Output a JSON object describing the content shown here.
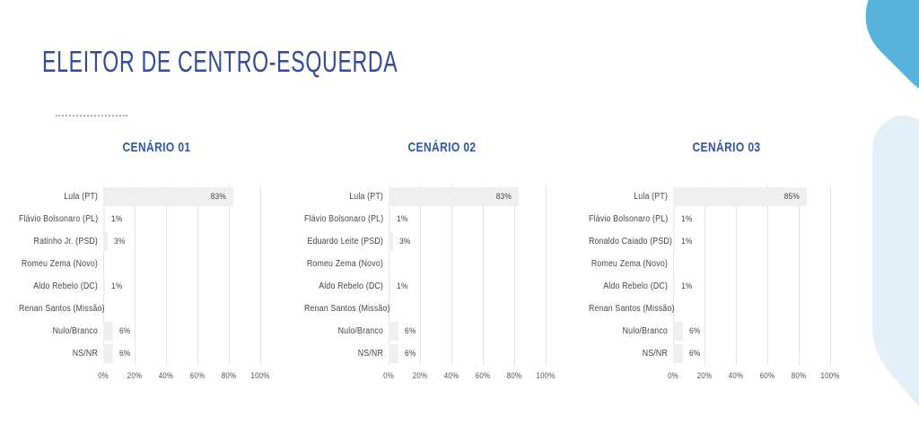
{
  "title": "ELEITOR DE CENTRO-ESQUERDA",
  "colors": {
    "title_navy": "#32499c",
    "scenario_blue": "#2d55a8",
    "bar_fill": "#efefef",
    "grid_line": "#e4e4e7",
    "label_text": "#3e434d",
    "blob_blue": "#57b3d9",
    "blob_light": "#e4f0f8"
  },
  "chart_data": [
    {
      "type": "bar",
      "orientation": "horizontal",
      "title": "CENÁRIO 01",
      "categories": [
        "Lula (PT)",
        "Flávio Bolsonaro (PL)",
        "Ratinho Jr. (PSD)",
        "Romeu Zema (Novo)",
        "Aldo Rebelo (DC)",
        "Renan Santos (Missão)",
        "Nulo/Branco",
        "NS/NR"
      ],
      "values": [
        83,
        1,
        3,
        0,
        1,
        0,
        6,
        6
      ],
      "value_labels": [
        "83%",
        "1%",
        "3%",
        "",
        "1%",
        "",
        "6%",
        "6%"
      ],
      "xlim": [
        0,
        100
      ],
      "x_ticks": [
        "0%",
        "20%",
        "40%",
        "60%",
        "80%",
        "100%"
      ],
      "grid": true,
      "legend": "none"
    },
    {
      "type": "bar",
      "orientation": "horizontal",
      "title": "CENÁRIO 02",
      "categories": [
        "Lula (PT)",
        "Flávio Bolsonaro (PL)",
        "Eduardo Leite (PSD)",
        "Romeu Zema (Novo)",
        "Aldo Rebelo (DC)",
        "Renan Santos (Missão)",
        "Nulo/Branco",
        "NS/NR"
      ],
      "values": [
        83,
        1,
        3,
        0,
        1,
        0,
        6,
        6
      ],
      "value_labels": [
        "83%",
        "1%",
        "3%",
        "",
        "1%",
        "",
        "6%",
        "6%"
      ],
      "xlim": [
        0,
        100
      ],
      "x_ticks": [
        "0%",
        "20%",
        "40%",
        "60%",
        "80%",
        "100%"
      ],
      "grid": true,
      "legend": "none"
    },
    {
      "type": "bar",
      "orientation": "horizontal",
      "title": "CENÁRIO 03",
      "categories": [
        "Lula (PT)",
        "Flávio Bolsonaro (PL)",
        "Ronaldo Caiado (PSD)",
        "Romeu Zema (Novo)",
        "Aldo Rebelo (DC)",
        "Renan Santos (Missão)",
        "Nulo/Branco",
        "NS/NR"
      ],
      "values": [
        85,
        1,
        1,
        0,
        1,
        0,
        6,
        6
      ],
      "value_labels": [
        "85%",
        "1%",
        "1%",
        "",
        "1%",
        "",
        "6%",
        "6%"
      ],
      "xlim": [
        0,
        100
      ],
      "x_ticks": [
        "0%",
        "20%",
        "40%",
        "60%",
        "80%",
        "100%"
      ],
      "grid": true,
      "legend": "none"
    }
  ]
}
